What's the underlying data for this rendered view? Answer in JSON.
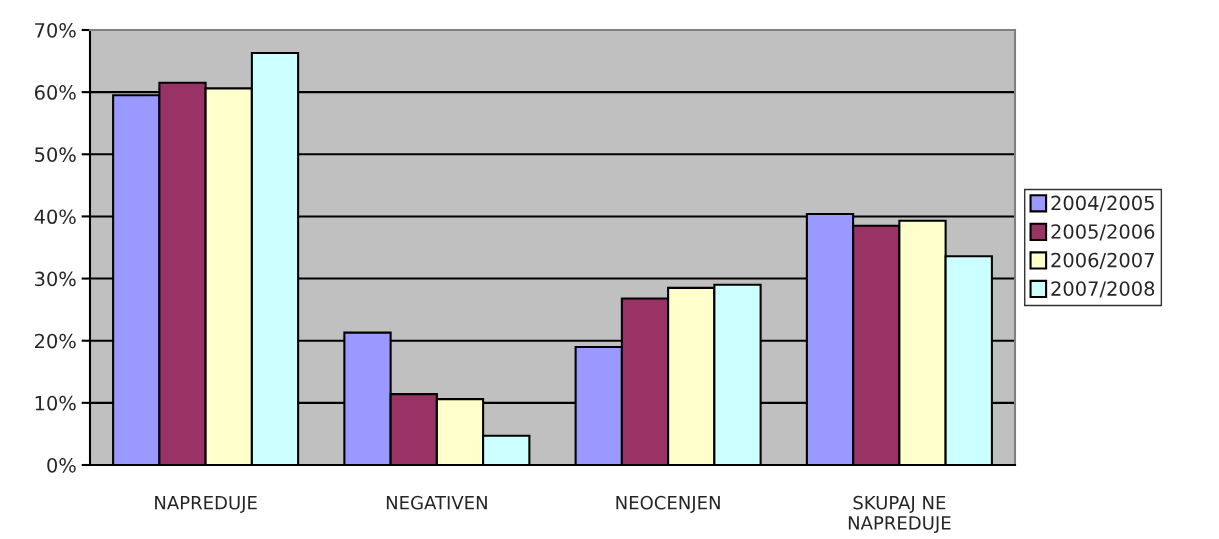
{
  "chart_data": {
    "type": "bar",
    "categories": [
      "NAPREDUJE",
      "NEGATIVEN",
      "NEOCENJEN",
      "SKUPAJ NE\nNAPREDUJE"
    ],
    "series": [
      {
        "name": "2004/2005",
        "color": "#9999ff",
        "values": [
          59.5,
          21.3,
          19.0,
          40.4
        ]
      },
      {
        "name": "2005/2006",
        "color": "#993366",
        "values": [
          61.5,
          11.4,
          26.8,
          38.5
        ]
      },
      {
        "name": "2006/2007",
        "color": "#ffffcc",
        "values": [
          60.6,
          10.6,
          28.5,
          39.3
        ]
      },
      {
        "name": "2007/2008",
        "color": "#ccffff",
        "values": [
          66.3,
          4.7,
          29.0,
          33.6
        ]
      }
    ],
    "ylim": [
      0,
      70
    ],
    "yticks": [
      {
        "value": 0,
        "label": "0%"
      },
      {
        "value": 10,
        "label": "10%"
      },
      {
        "value": 20,
        "label": "20%"
      },
      {
        "value": 30,
        "label": "30%"
      },
      {
        "value": 40,
        "label": "40%"
      },
      {
        "value": 50,
        "label": "50%"
      },
      {
        "value": 60,
        "label": "60%"
      },
      {
        "value": 70,
        "label": "70%"
      }
    ],
    "grid": "y",
    "legend": "right"
  }
}
